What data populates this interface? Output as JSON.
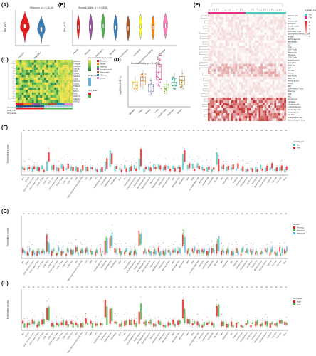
{
  "panels": {
    "A": {
      "label": "(A)",
      "test": "Wilcoxon, p = 2.2e-16",
      "ylabel": "Ubi_AVE",
      "categories": [
        "PanCK-",
        "PanCK+"
      ],
      "colors": [
        "#e41a1c",
        "#377eb8"
      ]
    },
    "B": {
      "label": "(B)",
      "test": "Kruskal-Wallis, p = 0.00038",
      "ylabel": "Ubi_AVE",
      "categories": [
        "Alveoli",
        "Alveolar",
        "Basal glan",
        "Bronchi",
        "Connective",
        "Lymphoid",
        "Seromucinous glands",
        "Vascular"
      ],
      "colors": [
        "#e41a1c",
        "#984ea3",
        "#4daf4a",
        "#377eb8",
        "#a65628",
        "#ffff33",
        "#ff7f00",
        "#f781bf"
      ]
    },
    "C": {
      "label": "(C)",
      "genes": [
        "RNF213",
        "TRIM28",
        "UBQLN2",
        "UBE2B",
        "CUL3",
        "USP9X",
        "NEDD4",
        "CBLB",
        "SOCS1",
        "UBA52",
        "TRIM21",
        "ITCH",
        "BIRC2",
        "RBX1",
        "HERC5",
        "UBE2L6",
        "HERC6"
      ],
      "legend": {
        "expression": "expression",
        "histology": "Histologic_origin",
        "ave": "AVE_cdn",
        "level": "Ubi_level"
      },
      "legend_items": [
        "Bladder",
        "Heart",
        "Kidney",
        "Lymph node",
        "Pancreas",
        "Spleen",
        "Lung"
      ],
      "legend_colors": [
        "#e41a1c",
        "#ff7f00",
        "#4daf4a",
        "#984ea3",
        "#a65628",
        "#377eb8",
        "#f781bf"
      ]
    },
    "D": {
      "label": "(D)",
      "test": "Kruskal-Wallis, p = 2.4e-05",
      "ylabel": "log2(Ubi_AVE+1)",
      "categories": [
        "Bladder",
        "Heart",
        "Kidney",
        "Lung",
        "Lymph node",
        "Pancreas",
        "Spleen"
      ],
      "colors": [
        "#e6ab02",
        "#d95f02",
        "#7570b3",
        "#e7298a",
        "#66a61e",
        "#1b9e77",
        "#a6761d"
      ]
    },
    "E": {
      "label": "(E)",
      "legend_title": "COVID-19",
      "legend_items": [
        "No",
        "Yes"
      ],
      "legend_colors": [
        "#4dc8c0",
        "#e7298a"
      ],
      "scale": [
        "8",
        "6",
        "4",
        "2",
        "0"
      ]
    },
    "F": {
      "label": "(F)",
      "legend_title": "COVID_19",
      "legend_items": [
        "No",
        "Yes"
      ],
      "legend_colors": [
        "#4dc8c0",
        "#e41a1c"
      ]
    },
    "G": {
      "label": "(G)",
      "legend_title": "Group",
      "legend_items": [
        "Ab neg",
        "Alveolar",
        "Alveolar"
      ],
      "legend_colors": [
        "#e41a1c",
        "#4daf4a",
        "#56b4e9"
      ]
    },
    "H": {
      "label": "(H)",
      "legend_title": "Ubi_level",
      "legend_items": [
        "High",
        "Low"
      ],
      "legend_colors": [
        "#e41a1c",
        "#4daf4a"
      ]
    }
  },
  "enrichment_ylabel": "Enrichment scores",
  "sig_label": "ns",
  "cell_types": [
    "aDC",
    "B cells",
    "CD4+ memory T-cells",
    "CD4+ naive T-cells",
    "CD4+ T-cells",
    "CD4+ Tcm",
    "CD4+ Tem",
    "CD8+ naive T-cells",
    "CD8+ T-cells",
    "CD8+ Tcm",
    "CD8+ Tem",
    "cDC",
    "Class-switched memory B-cells",
    "CLP",
    "CMP",
    "DC",
    "Endothelial cells",
    "Eosinophils",
    "Epithelial cells",
    "Fibroblasts",
    "GMP",
    "iDC",
    "Keratinocytes",
    "ly Endothelial cells",
    "Macrophages",
    "Macrophages M1",
    "Macrophages M2",
    "Mast cells",
    "Megakaryocytes",
    "Melanocytes",
    "Memory B-cells",
    "MEP",
    "Mesangial cells",
    "Monocytes",
    "MPP",
    "MSC",
    "mv Endothelial cells",
    "Myocytes",
    "naive B-cells",
    "Neutrophils",
    "NK cells",
    "NKT",
    "Osteoblast",
    "pDC",
    "Pericytes",
    "Plasma cells",
    "Preadipocytes",
    "pro B-cells",
    "Sebocytes",
    "Skeletal muscle",
    "Smooth muscle",
    "Tgd cells",
    "Th1 cells",
    "Th2 cells",
    "Tregs"
  ],
  "heatmap_rows": [
    "Epithelial cells",
    "pDC",
    "Keratinocytes",
    "Sebocytes",
    "Smooth muscle",
    "Th2 cells",
    "CD4+ naive T-cells",
    "Class-switched memory B-cells",
    "NK cells",
    "Macrophages M1",
    "Macrophages",
    "CLP",
    "Tregs",
    "CD8+ T-cells",
    "Plasma cells",
    "Adipocytes",
    "CD4+ T-cells",
    "Megakaryocytes",
    "Eosinophils",
    "CD4+ Tem",
    "CMP",
    "Th1 cells",
    "Neurons",
    "naive B-cells",
    "CD8+ Tem",
    "Memory B-cells",
    "B-cells",
    "MEP",
    "CD4+ memory T-cells",
    "Monocytes",
    "GMP",
    "MSC",
    "Chondrocytes",
    "Fibroblasts",
    "Endothelial cells",
    "ly Endothelial cells",
    "Macrophages M2",
    "Mesangial cells",
    "Osteoblast",
    "Mv Endothelial cells",
    "Microenvironment Score"
  ]
}
